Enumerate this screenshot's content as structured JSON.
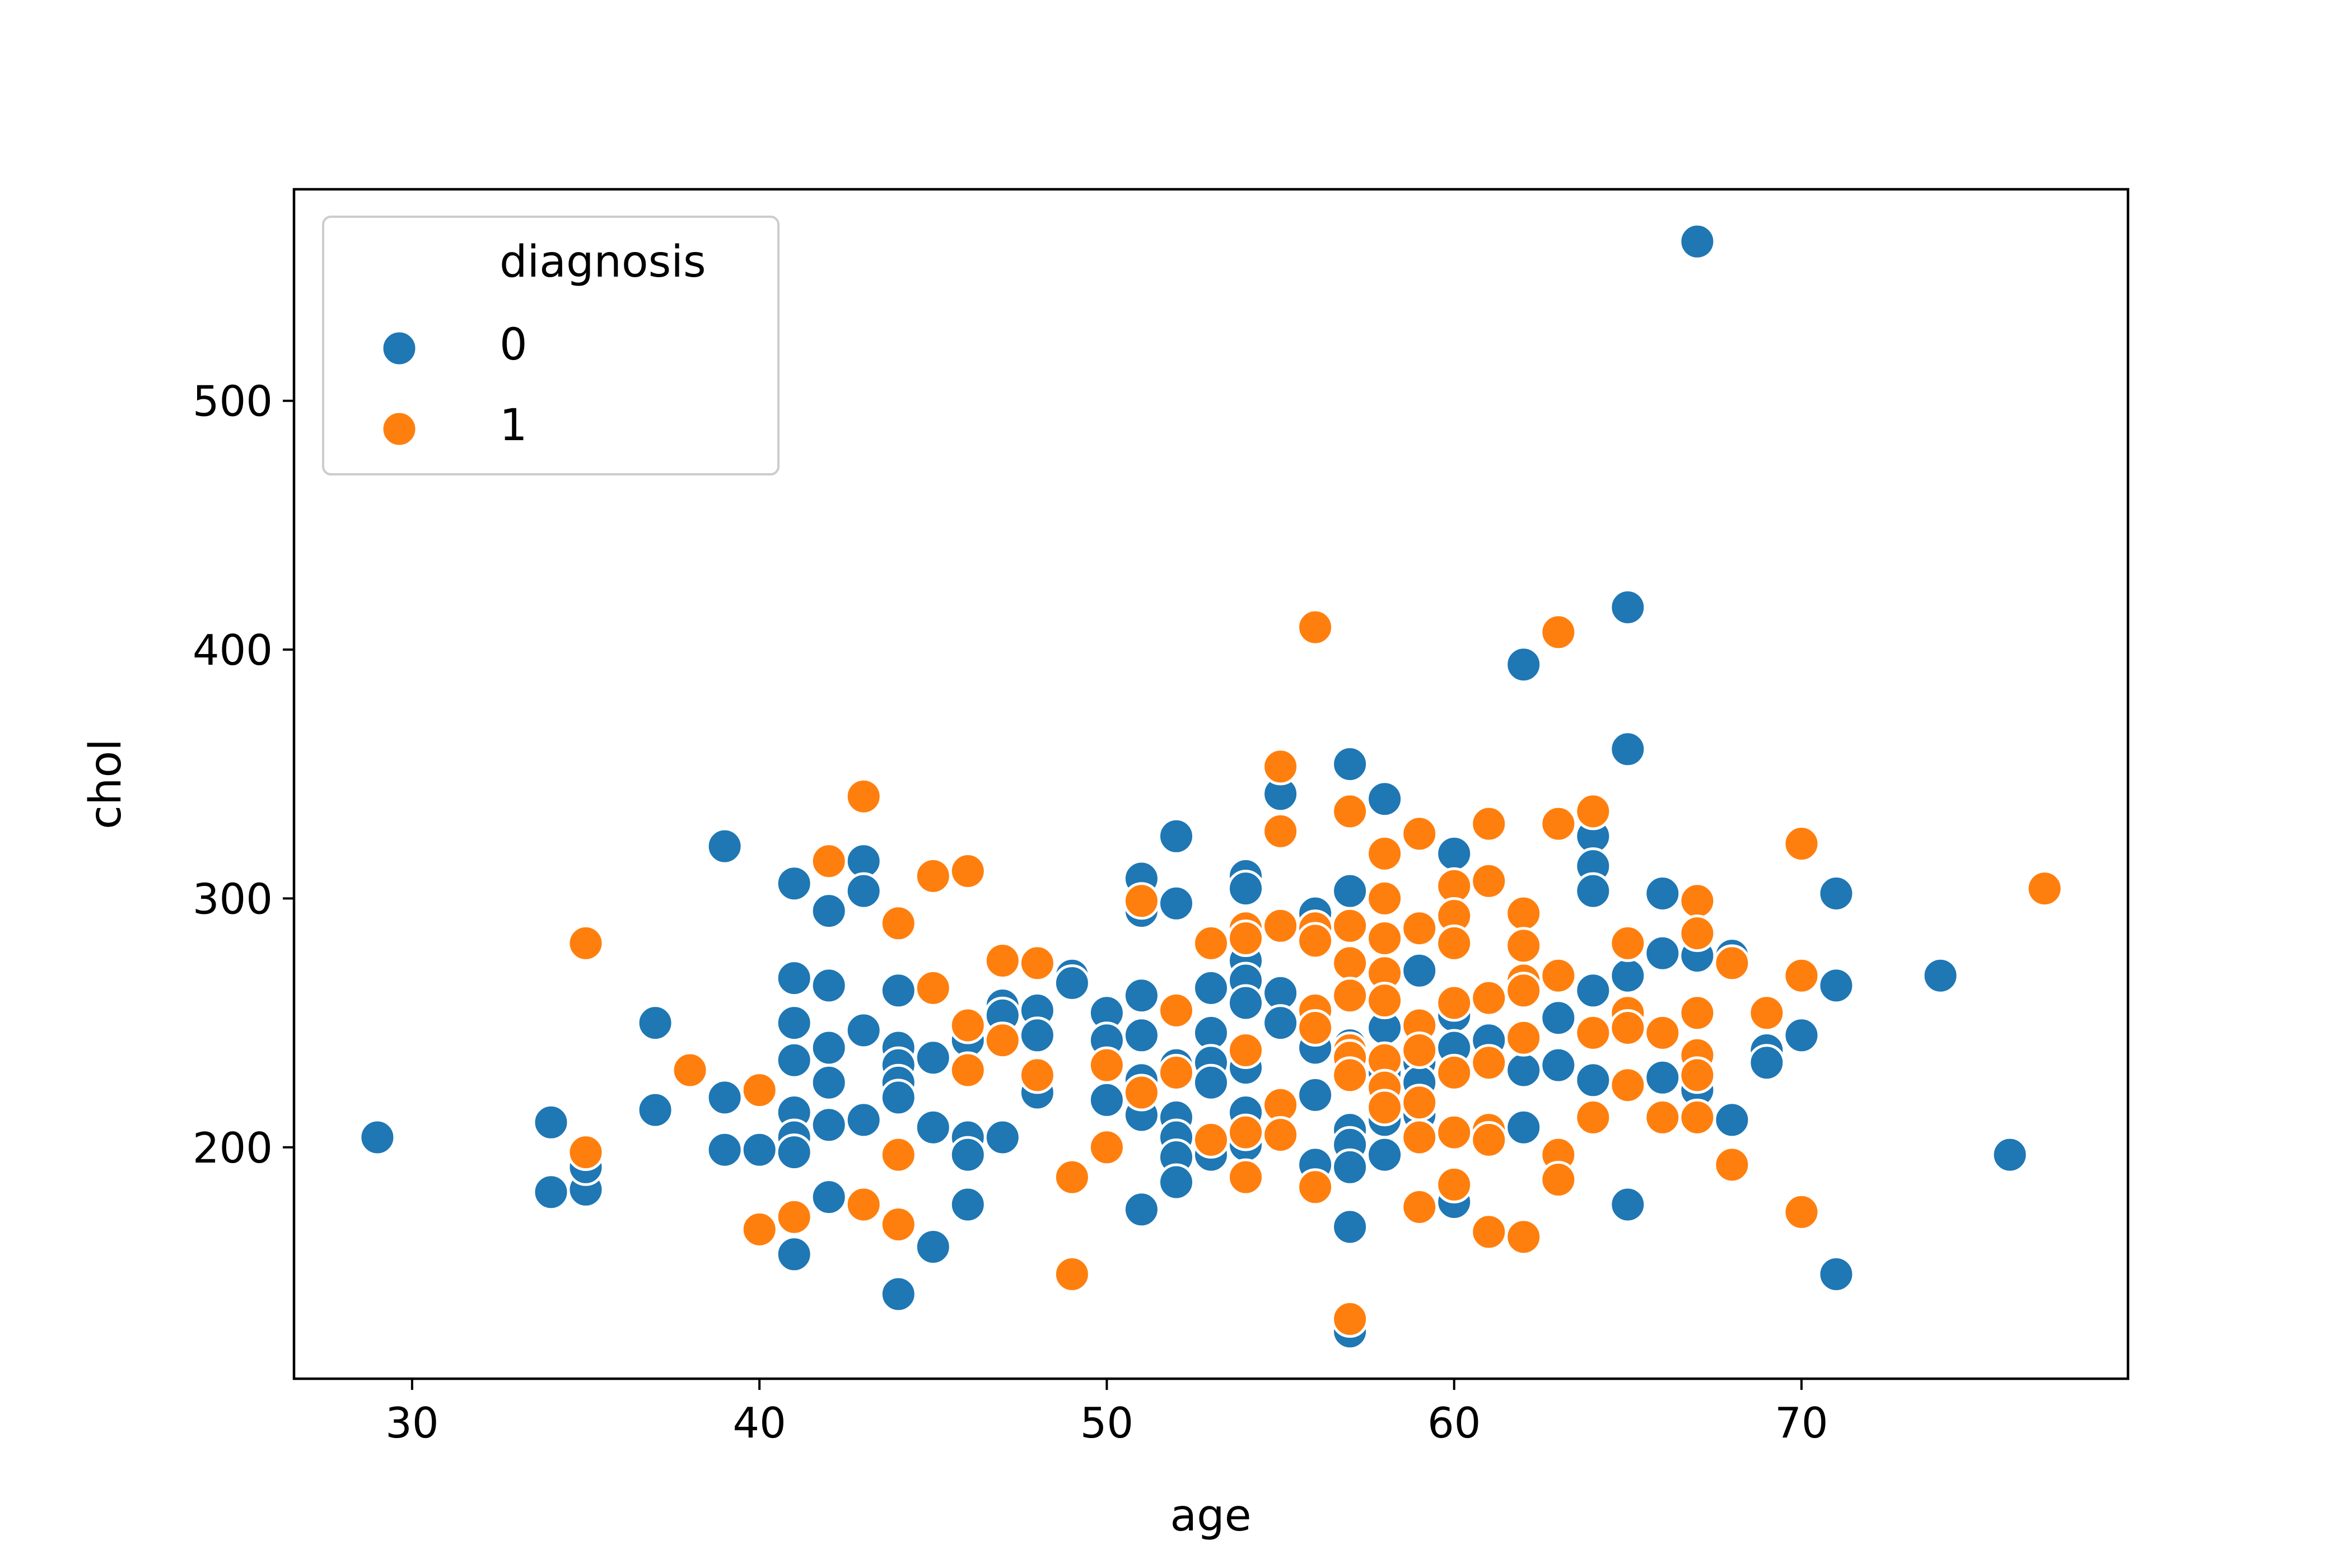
{
  "chart_data": {
    "type": "scatter",
    "xlabel": "age",
    "ylabel": "chol",
    "xlim": [
      26.6,
      79.4
    ],
    "ylim": [
      107,
      585
    ],
    "x_ticks": [
      30,
      40,
      50,
      60,
      70
    ],
    "y_ticks": [
      200,
      300,
      400,
      500
    ],
    "grid": false,
    "legend": {
      "title": "diagnosis",
      "placement": "top-left"
    },
    "series": [
      {
        "name": "0",
        "color": "#1f77b4",
        "points": [
          [
            29,
            204
          ],
          [
            34,
            210
          ],
          [
            34,
            182
          ],
          [
            35,
            183
          ],
          [
            35,
            192
          ],
          [
            37,
            215
          ],
          [
            37,
            250
          ],
          [
            39,
            321
          ],
          [
            39,
            220
          ],
          [
            39,
            199
          ],
          [
            40,
            199
          ],
          [
            41,
            306
          ],
          [
            41,
            268
          ],
          [
            41,
            250
          ],
          [
            41,
            235
          ],
          [
            41,
            214
          ],
          [
            41,
            204
          ],
          [
            41,
            198
          ],
          [
            41,
            157
          ],
          [
            42,
            295
          ],
          [
            42,
            265
          ],
          [
            42,
            240
          ],
          [
            42,
            226
          ],
          [
            42,
            209
          ],
          [
            42,
            180
          ],
          [
            43,
            315
          ],
          [
            43,
            303
          ],
          [
            43,
            247
          ],
          [
            43,
            211
          ],
          [
            44,
            263
          ],
          [
            44,
            240
          ],
          [
            44,
            233
          ],
          [
            44,
            226
          ],
          [
            44,
            220
          ],
          [
            44,
            141
          ],
          [
            45,
            236
          ],
          [
            45,
            208
          ],
          [
            45,
            160
          ],
          [
            46,
            243
          ],
          [
            46,
            204
          ],
          [
            46,
            197
          ],
          [
            46,
            177
          ],
          [
            47,
            257
          ],
          [
            47,
            253
          ],
          [
            47,
            204
          ],
          [
            48,
            255
          ],
          [
            48,
            245
          ],
          [
            48,
            222
          ],
          [
            49,
            269
          ],
          [
            49,
            266
          ],
          [
            50,
            254
          ],
          [
            50,
            243
          ],
          [
            50,
            219
          ],
          [
            50,
            200
          ],
          [
            51,
            308
          ],
          [
            51,
            295
          ],
          [
            51,
            261
          ],
          [
            51,
            245
          ],
          [
            51,
            227
          ],
          [
            51,
            213
          ],
          [
            51,
            175
          ],
          [
            52,
            325
          ],
          [
            52,
            298
          ],
          [
            52,
            233
          ],
          [
            52,
            212
          ],
          [
            52,
            204
          ],
          [
            52,
            196
          ],
          [
            52,
            186
          ],
          [
            53,
            264
          ],
          [
            53,
            246
          ],
          [
            53,
            234
          ],
          [
            53,
            226
          ],
          [
            53,
            197
          ],
          [
            54,
            309
          ],
          [
            54,
            304
          ],
          [
            54,
            286
          ],
          [
            54,
            275
          ],
          [
            54,
            267
          ],
          [
            54,
            258
          ],
          [
            54,
            232
          ],
          [
            54,
            214
          ],
          [
            54,
            201
          ],
          [
            55,
            342
          ],
          [
            55,
            262
          ],
          [
            55,
            250
          ],
          [
            56,
            294
          ],
          [
            56,
            288
          ],
          [
            56,
            249
          ],
          [
            56,
            240
          ],
          [
            56,
            221
          ],
          [
            56,
            193
          ],
          [
            57,
            354
          ],
          [
            57,
            303
          ],
          [
            57,
            241
          ],
          [
            57,
            207
          ],
          [
            57,
            201
          ],
          [
            57,
            192
          ],
          [
            57,
            168
          ],
          [
            57,
            126
          ],
          [
            58,
            340
          ],
          [
            58,
            248
          ],
          [
            58,
            230
          ],
          [
            58,
            211
          ],
          [
            58,
            197
          ],
          [
            59,
            271
          ],
          [
            59,
            234
          ],
          [
            59,
            226
          ],
          [
            59,
            213
          ],
          [
            60,
            318
          ],
          [
            60,
            253
          ],
          [
            60,
            240
          ],
          [
            60,
            178
          ],
          [
            61,
            243
          ],
          [
            62,
            394
          ],
          [
            62,
            231
          ],
          [
            62,
            208
          ],
          [
            63,
            252
          ],
          [
            63,
            233
          ],
          [
            64,
            325
          ],
          [
            64,
            313
          ],
          [
            64,
            303
          ],
          [
            64,
            263
          ],
          [
            64,
            227
          ],
          [
            65,
            417
          ],
          [
            65,
            360
          ],
          [
            65,
            269
          ],
          [
            65,
            254
          ],
          [
            65,
            177
          ],
          [
            66,
            302
          ],
          [
            66,
            278
          ],
          [
            66,
            228
          ],
          [
            67,
            564
          ],
          [
            67,
            277
          ],
          [
            67,
            223
          ],
          [
            68,
            277
          ],
          [
            68,
            211
          ],
          [
            69,
            239
          ],
          [
            69,
            234
          ],
          [
            70,
            245
          ],
          [
            71,
            302
          ],
          [
            71,
            265
          ],
          [
            71,
            149
          ],
          [
            74,
            269
          ],
          [
            76,
            197
          ]
        ]
      },
      {
        "name": "1",
        "color": "#ff7f0e",
        "points": [
          [
            35,
            282
          ],
          [
            35,
            198
          ],
          [
            38,
            231
          ],
          [
            40,
            223
          ],
          [
            40,
            167
          ],
          [
            41,
            172
          ],
          [
            42,
            315
          ],
          [
            43,
            341
          ],
          [
            43,
            177
          ],
          [
            44,
            290
          ],
          [
            44,
            197
          ],
          [
            44,
            169
          ],
          [
            45,
            309
          ],
          [
            45,
            264
          ],
          [
            46,
            311
          ],
          [
            46,
            249
          ],
          [
            46,
            231
          ],
          [
            47,
            275
          ],
          [
            47,
            243
          ],
          [
            48,
            274
          ],
          [
            48,
            229
          ],
          [
            49,
            188
          ],
          [
            49,
            149
          ],
          [
            50,
            233
          ],
          [
            50,
            200
          ],
          [
            51,
            299
          ],
          [
            51,
            222
          ],
          [
            52,
            255
          ],
          [
            52,
            230
          ],
          [
            53,
            282
          ],
          [
            53,
            203
          ],
          [
            54,
            288
          ],
          [
            54,
            284
          ],
          [
            54,
            239
          ],
          [
            54,
            206
          ],
          [
            54,
            188
          ],
          [
            55,
            353
          ],
          [
            55,
            327
          ],
          [
            55,
            289
          ],
          [
            55,
            217
          ],
          [
            55,
            205
          ],
          [
            56,
            409
          ],
          [
            56,
            288
          ],
          [
            56,
            283
          ],
          [
            56,
            255
          ],
          [
            56,
            248
          ],
          [
            56,
            184
          ],
          [
            57,
            335
          ],
          [
            57,
            289
          ],
          [
            57,
            274
          ],
          [
            57,
            261
          ],
          [
            57,
            239
          ],
          [
            57,
            236
          ],
          [
            57,
            229
          ],
          [
            57,
            131
          ],
          [
            58,
            318
          ],
          [
            58,
            300
          ],
          [
            58,
            284
          ],
          [
            58,
            270
          ],
          [
            58,
            259
          ],
          [
            58,
            235
          ],
          [
            58,
            224
          ],
          [
            58,
            216
          ],
          [
            59,
            326
          ],
          [
            59,
            288
          ],
          [
            59,
            249
          ],
          [
            59,
            239
          ],
          [
            59,
            218
          ],
          [
            59,
            204
          ],
          [
            59,
            176
          ],
          [
            60,
            305
          ],
          [
            60,
            293
          ],
          [
            60,
            282
          ],
          [
            60,
            258
          ],
          [
            60,
            230
          ],
          [
            60,
            206
          ],
          [
            60,
            185
          ],
          [
            61,
            330
          ],
          [
            61,
            307
          ],
          [
            61,
            260
          ],
          [
            61,
            234
          ],
          [
            61,
            207
          ],
          [
            61,
            203
          ],
          [
            61,
            166
          ],
          [
            62,
            294
          ],
          [
            62,
            281
          ],
          [
            62,
            267
          ],
          [
            62,
            263
          ],
          [
            62,
            244
          ],
          [
            62,
            164
          ],
          [
            63,
            407
          ],
          [
            63,
            330
          ],
          [
            63,
            269
          ],
          [
            63,
            197
          ],
          [
            63,
            187
          ],
          [
            64,
            335
          ],
          [
            64,
            246
          ],
          [
            64,
            212
          ],
          [
            65,
            282
          ],
          [
            65,
            254
          ],
          [
            65,
            248
          ],
          [
            65,
            225
          ],
          [
            66,
            246
          ],
          [
            66,
            212
          ],
          [
            67,
            299
          ],
          [
            67,
            286
          ],
          [
            67,
            254
          ],
          [
            67,
            237
          ],
          [
            67,
            229
          ],
          [
            67,
            212
          ],
          [
            68,
            274
          ],
          [
            68,
            193
          ],
          [
            69,
            254
          ],
          [
            70,
            322
          ],
          [
            70,
            269
          ],
          [
            70,
            174
          ],
          [
            77,
            304
          ]
        ]
      }
    ]
  }
}
